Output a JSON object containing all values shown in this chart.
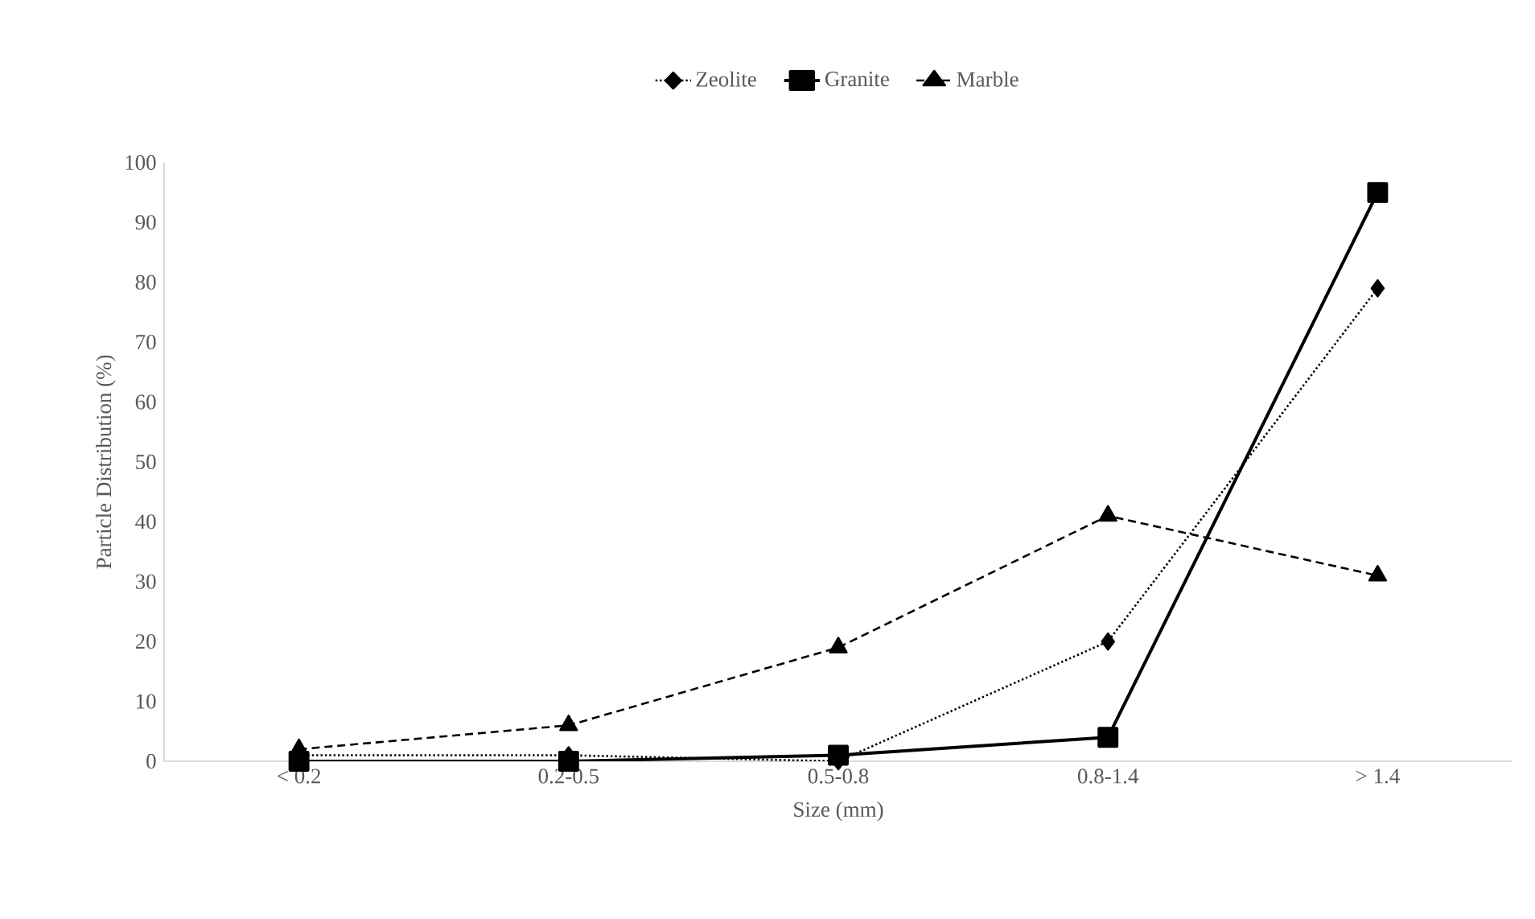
{
  "chart_data": {
    "type": "line",
    "xlabel": "Size (mm)",
    "ylabel": "Particle Distribution (%)",
    "categories": [
      "< 0.2",
      "0.2-0.5",
      "0.5-0.8",
      "0.8-1.4",
      "> 1.4"
    ],
    "ylim": [
      0,
      100
    ],
    "yticks": [
      0,
      10,
      20,
      30,
      40,
      50,
      60,
      70,
      80,
      90,
      100
    ],
    "grid": false,
    "legend": "top",
    "series": [
      {
        "name": "Zeolite",
        "color": "#000000",
        "marker": "diamond",
        "line_style": "dotted",
        "values": [
          1,
          1,
          0,
          20,
          79
        ]
      },
      {
        "name": "Granite",
        "color": "#000000",
        "marker": "square",
        "line_style": "solid",
        "values": [
          0,
          0,
          1,
          4,
          95
        ]
      },
      {
        "name": "Marble",
        "color": "#000000",
        "marker": "triangle",
        "line_style": "dashed",
        "values": [
          2,
          6,
          19,
          41,
          31
        ]
      }
    ]
  }
}
